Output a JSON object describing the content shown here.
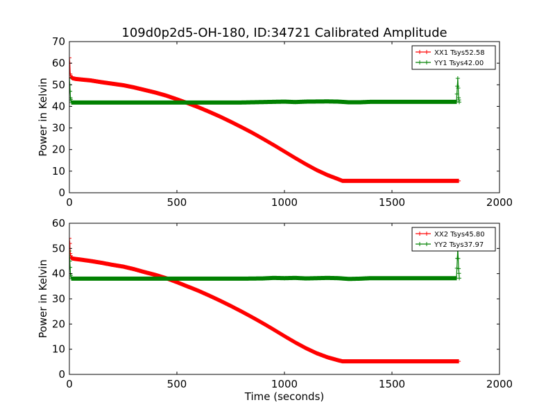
{
  "figure": {
    "title": "109d0p2d5-OH-180, ID:34721 Calibrated Amplitude"
  },
  "chart_data": [
    {
      "type": "line",
      "title": "109d0p2d5-OH-180, ID:34721 Calibrated Amplitude",
      "xlabel": "",
      "ylabel": "Power in Kelvin",
      "xlim": [
        0,
        2000
      ],
      "ylim": [
        0,
        70
      ],
      "xticks": [
        "0",
        "500",
        "1000",
        "1500",
        "2000"
      ],
      "yticks": [
        "0",
        "10",
        "20",
        "30",
        "40",
        "50",
        "60",
        "70"
      ],
      "legend_position": "top-right",
      "grid": false,
      "series": [
        {
          "name": "XX1 Tsys52.58",
          "color": "#ff0000",
          "x": [
            0,
            2,
            4,
            8,
            15,
            30,
            50,
            100,
            150,
            200,
            250,
            300,
            350,
            400,
            450,
            500,
            550,
            600,
            650,
            700,
            750,
            800,
            850,
            900,
            950,
            1000,
            1050,
            1100,
            1150,
            1200,
            1250,
            1270,
            1300,
            1400,
            1500,
            1600,
            1700,
            1810
          ],
          "y": [
            62.5,
            60,
            55,
            53.5,
            53,
            52.7,
            52.5,
            52,
            51.2,
            50.5,
            49.8,
            48.8,
            47.6,
            46.4,
            45,
            43.3,
            41.5,
            39.6,
            37.5,
            35.3,
            32.9,
            30.4,
            27.8,
            25,
            22.1,
            19.1,
            16.1,
            13.2,
            10.5,
            8.2,
            6.3,
            5.5,
            5.5,
            5.5,
            5.5,
            5.5,
            5.5,
            5.5
          ]
        },
        {
          "name": "YY1 Tsys42.00",
          "color": "#008000",
          "x": [
            0,
            2,
            5,
            10,
            100,
            200,
            400,
            600,
            800,
            950,
            1000,
            1050,
            1100,
            1200,
            1250,
            1300,
            1350,
            1400,
            1500,
            1600,
            1700,
            1800,
            1806,
            1810,
            1813
          ],
          "y": [
            53,
            50,
            44,
            41.8,
            41.8,
            41.8,
            41.8,
            41.8,
            41.8,
            42.1,
            42.2,
            42,
            42.2,
            42.3,
            42.2,
            41.9,
            41.9,
            42.1,
            42.1,
            42.1,
            42.1,
            42.1,
            53,
            44,
            42
          ]
        }
      ]
    },
    {
      "type": "line",
      "title": "",
      "xlabel": "Time (seconds)",
      "ylabel": "Power in Kelvin",
      "xlim": [
        0,
        2000
      ],
      "ylim": [
        0,
        60
      ],
      "xticks": [
        "0",
        "500",
        "1000",
        "1500",
        "2000"
      ],
      "yticks": [
        "0",
        "10",
        "20",
        "30",
        "40",
        "50",
        "60"
      ],
      "legend_position": "top-right",
      "grid": false,
      "series": [
        {
          "name": "XX2 Tsys45.80",
          "color": "#ff0000",
          "x": [
            0,
            2,
            4,
            8,
            15,
            30,
            50,
            100,
            150,
            200,
            250,
            300,
            350,
            400,
            450,
            500,
            550,
            600,
            650,
            700,
            750,
            800,
            850,
            900,
            950,
            1000,
            1050,
            1100,
            1150,
            1200,
            1250,
            1270,
            1300,
            1400,
            1500,
            1600,
            1700,
            1810
          ],
          "y": [
            54,
            52,
            48,
            46.3,
            46,
            45.8,
            45.6,
            45,
            44.3,
            43.5,
            42.8,
            41.8,
            40.6,
            39.5,
            38.2,
            36.6,
            34.9,
            33.2,
            31.3,
            29.3,
            27.2,
            25,
            22.7,
            20.3,
            17.8,
            15.2,
            12.7,
            10.4,
            8.4,
            6.8,
            5.6,
            5.2,
            5.2,
            5.2,
            5.2,
            5.2,
            5.2,
            5.2
          ]
        },
        {
          "name": "YY2 Tsys37.97",
          "color": "#008000",
          "x": [
            0,
            2,
            5,
            10,
            100,
            200,
            400,
            600,
            800,
            900,
            950,
            1000,
            1050,
            1100,
            1200,
            1250,
            1300,
            1350,
            1400,
            1500,
            1600,
            1700,
            1800,
            1806,
            1810,
            1813
          ],
          "y": [
            49,
            45,
            40,
            38,
            38,
            38,
            38,
            38,
            38,
            38.1,
            38.3,
            38.2,
            38.3,
            38.1,
            38.3,
            38.2,
            37.9,
            38,
            38.2,
            38.2,
            38.2,
            38.2,
            38.2,
            50,
            42,
            38.2
          ]
        }
      ]
    }
  ]
}
